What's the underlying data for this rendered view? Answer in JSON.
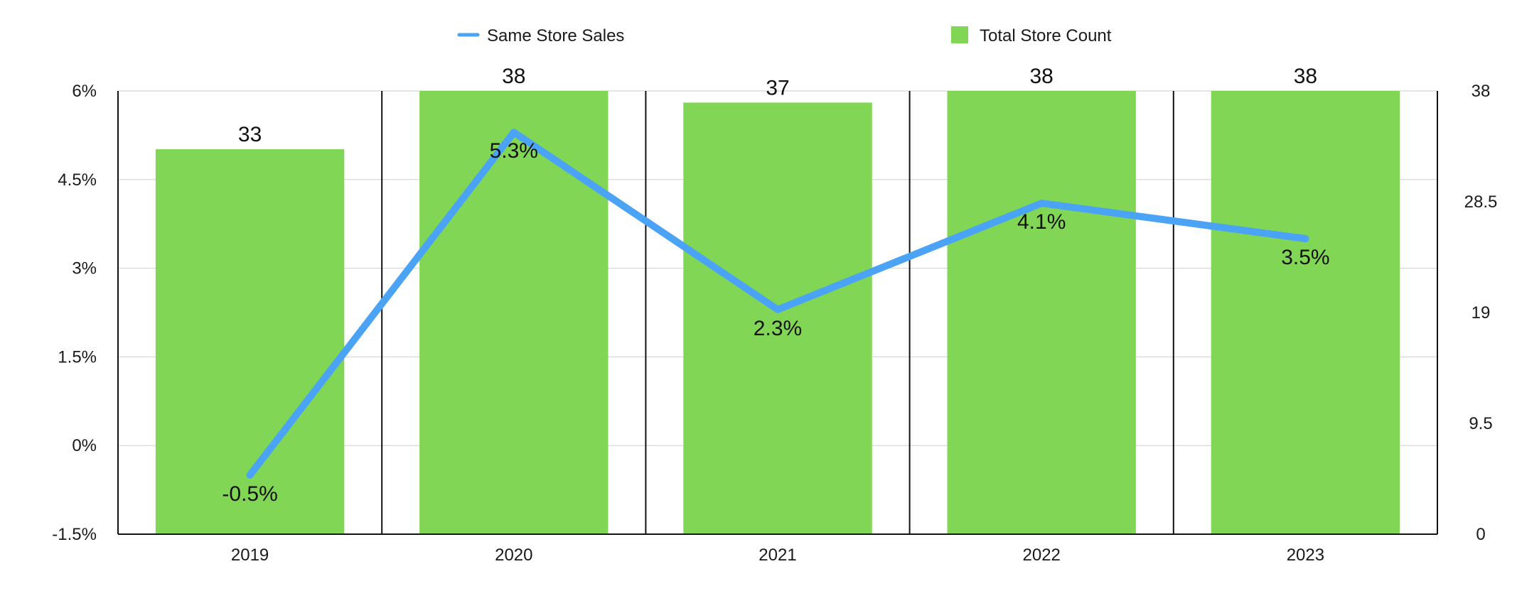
{
  "chart_data": {
    "type": "bar",
    "categories": [
      "2019",
      "2020",
      "2021",
      "2022",
      "2023"
    ],
    "series": [
      {
        "name": "Total Store Count",
        "type": "bar",
        "axis": "right",
        "values": [
          33,
          38,
          37,
          38,
          38
        ],
        "labels": [
          "33",
          "38",
          "37",
          "38",
          "38"
        ],
        "color": "#82d655"
      },
      {
        "name": "Same Store Sales",
        "type": "line",
        "axis": "left",
        "values": [
          -0.5,
          5.3,
          2.3,
          4.1,
          3.5
        ],
        "labels": [
          "-0.5%",
          "5.3%",
          "2.3%",
          "4.1%",
          "3.5%"
        ],
        "color": "#4aa3f5"
      }
    ],
    "y_left": {
      "range": [
        -1.5,
        6
      ],
      "ticks": [
        6,
        4.5,
        3,
        1.5,
        0,
        -1.5
      ],
      "tick_labels": [
        "6%",
        "4.5%",
        "3%",
        "1.5%",
        "0%",
        "-1.5%"
      ]
    },
    "y_right": {
      "range": [
        0,
        38
      ],
      "ticks": [
        38,
        28.5,
        19,
        9.5,
        0
      ],
      "tick_labels": [
        "38",
        "28.5",
        "19",
        "9.5",
        "0"
      ]
    },
    "legend": {
      "placement": "top",
      "items": [
        {
          "label": "Same Store Sales",
          "marker": "line",
          "color": "#4aa3f5"
        },
        {
          "label": "Total Store Count",
          "marker": "square",
          "color": "#82d655"
        }
      ]
    },
    "grid": true
  }
}
